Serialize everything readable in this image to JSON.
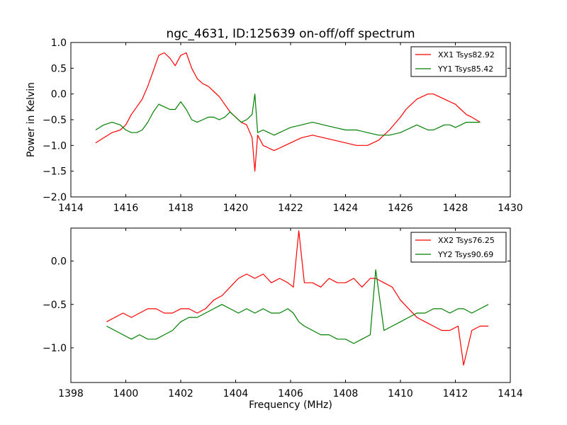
{
  "figure": {
    "title": "ngc_4631, ID:125639 on-off/off spectrum",
    "ylabel": "Power in Kelvin",
    "xlabel": "Frequency (MHz)"
  },
  "chart_data": [
    {
      "type": "line",
      "title": "ngc_4631, ID:125639 on-off/off spectrum",
      "xlabel": "",
      "ylabel": "Power in Kelvin",
      "xlim": [
        1414,
        1430
      ],
      "ylim": [
        -2.0,
        1.0
      ],
      "xticks": [
        1414,
        1416,
        1418,
        1420,
        1422,
        1424,
        1426,
        1428,
        1430
      ],
      "yticks": [
        -2.0,
        -1.5,
        -1.0,
        -0.5,
        0.0,
        0.5,
        1.0
      ],
      "xtick_labels": [
        "1414",
        "1416",
        "1418",
        "1420",
        "1422",
        "1424",
        "1426",
        "1428",
        "1430"
      ],
      "ytick_labels": [
        "−2.0",
        "−1.5",
        "−1.0",
        "−0.5",
        "0.0",
        "0.5",
        "1.0"
      ],
      "grid": false,
      "legend_position": "top-right",
      "series": [
        {
          "name": "XX1 Tsys82.92",
          "color": "#ff0000",
          "x": [
            1414.9,
            1415.2,
            1415.5,
            1415.8,
            1416.0,
            1416.2,
            1416.4,
            1416.6,
            1416.8,
            1417.0,
            1417.2,
            1417.4,
            1417.6,
            1417.8,
            1418.0,
            1418.2,
            1418.4,
            1418.6,
            1418.8,
            1419.0,
            1419.2,
            1419.4,
            1419.6,
            1419.8,
            1420.0,
            1420.2,
            1420.4,
            1420.6,
            1420.7,
            1420.8,
            1421.0,
            1421.2,
            1421.4,
            1421.6,
            1421.8,
            1422.0,
            1422.4,
            1422.8,
            1423.2,
            1423.6,
            1424.0,
            1424.4,
            1424.8,
            1425.2,
            1425.6,
            1426.0,
            1426.2,
            1426.4,
            1426.6,
            1426.8,
            1427.0,
            1427.2,
            1427.4,
            1427.6,
            1427.8,
            1428.0,
            1428.2,
            1428.4,
            1428.6,
            1428.9
          ],
          "y": [
            -0.95,
            -0.85,
            -0.75,
            -0.7,
            -0.6,
            -0.4,
            -0.25,
            -0.1,
            0.15,
            0.45,
            0.75,
            0.8,
            0.7,
            0.55,
            0.75,
            0.8,
            0.5,
            0.3,
            0.2,
            0.15,
            0.05,
            -0.05,
            -0.2,
            -0.35,
            -0.45,
            -0.55,
            -0.6,
            -0.85,
            -1.5,
            -0.8,
            -1.0,
            -1.05,
            -1.1,
            -1.05,
            -1.0,
            -0.95,
            -0.85,
            -0.8,
            -0.85,
            -0.9,
            -0.95,
            -1.0,
            -1.0,
            -0.9,
            -0.7,
            -0.45,
            -0.3,
            -0.2,
            -0.1,
            -0.05,
            0.0,
            0.0,
            -0.05,
            -0.1,
            -0.15,
            -0.2,
            -0.3,
            -0.4,
            -0.45,
            -0.55
          ]
        },
        {
          "name": "YY1 Tsys85.42",
          "color": "#008000",
          "x": [
            1414.9,
            1415.2,
            1415.5,
            1415.8,
            1416.0,
            1416.2,
            1416.4,
            1416.6,
            1416.8,
            1417.0,
            1417.2,
            1417.4,
            1417.6,
            1417.8,
            1418.0,
            1418.2,
            1418.4,
            1418.6,
            1418.8,
            1419.0,
            1419.2,
            1419.4,
            1419.6,
            1419.8,
            1420.0,
            1420.2,
            1420.4,
            1420.6,
            1420.7,
            1420.8,
            1421.0,
            1421.2,
            1421.4,
            1421.6,
            1421.8,
            1422.0,
            1422.4,
            1422.8,
            1423.2,
            1423.6,
            1424.0,
            1424.4,
            1424.8,
            1425.2,
            1425.6,
            1426.0,
            1426.2,
            1426.4,
            1426.6,
            1426.8,
            1427.0,
            1427.2,
            1427.4,
            1427.6,
            1427.8,
            1428.0,
            1428.2,
            1428.4,
            1428.6,
            1428.9
          ],
          "y": [
            -0.7,
            -0.6,
            -0.55,
            -0.6,
            -0.7,
            -0.75,
            -0.75,
            -0.7,
            -0.55,
            -0.35,
            -0.2,
            -0.25,
            -0.3,
            -0.3,
            -0.15,
            -0.3,
            -0.5,
            -0.55,
            -0.5,
            -0.45,
            -0.45,
            -0.5,
            -0.45,
            -0.35,
            -0.45,
            -0.55,
            -0.5,
            -0.4,
            0.0,
            -0.75,
            -0.7,
            -0.75,
            -0.8,
            -0.75,
            -0.7,
            -0.65,
            -0.6,
            -0.55,
            -0.6,
            -0.65,
            -0.7,
            -0.7,
            -0.75,
            -0.8,
            -0.8,
            -0.75,
            -0.7,
            -0.65,
            -0.6,
            -0.65,
            -0.7,
            -0.7,
            -0.65,
            -0.6,
            -0.6,
            -0.65,
            -0.6,
            -0.55,
            -0.55,
            -0.55
          ]
        }
      ]
    },
    {
      "type": "line",
      "title": "",
      "xlabel": "Frequency (MHz)",
      "ylabel": "",
      "xlim": [
        1398,
        1414
      ],
      "ylim": [
        -1.4,
        0.38
      ],
      "xticks": [
        1398,
        1400,
        1402,
        1404,
        1406,
        1408,
        1410,
        1412,
        1414
      ],
      "yticks": [
        -1.0,
        -0.5,
        0.0
      ],
      "xtick_labels": [
        "1398",
        "1400",
        "1402",
        "1404",
        "1406",
        "1408",
        "1410",
        "1412",
        "1414"
      ],
      "ytick_labels": [
        "−1.0",
        "−0.5",
        "0.0"
      ],
      "grid": false,
      "legend_position": "top-right",
      "series": [
        {
          "name": "XX2 Tsys76.25",
          "color": "#ff0000",
          "x": [
            1399.3,
            1399.6,
            1399.9,
            1400.2,
            1400.5,
            1400.8,
            1401.1,
            1401.4,
            1401.7,
            1402.0,
            1402.3,
            1402.6,
            1402.9,
            1403.2,
            1403.5,
            1403.8,
            1404.1,
            1404.4,
            1404.7,
            1405.0,
            1405.3,
            1405.6,
            1405.9,
            1406.1,
            1406.3,
            1406.5,
            1406.8,
            1407.1,
            1407.4,
            1407.7,
            1408.0,
            1408.3,
            1408.6,
            1408.9,
            1409.1,
            1409.4,
            1409.7,
            1410.0,
            1410.3,
            1410.6,
            1410.9,
            1411.2,
            1411.5,
            1411.8,
            1412.1,
            1412.3,
            1412.6,
            1412.9,
            1413.2
          ],
          "y": [
            -0.7,
            -0.65,
            -0.6,
            -0.65,
            -0.6,
            -0.55,
            -0.55,
            -0.6,
            -0.6,
            -0.55,
            -0.55,
            -0.6,
            -0.55,
            -0.45,
            -0.4,
            -0.3,
            -0.2,
            -0.15,
            -0.2,
            -0.15,
            -0.25,
            -0.2,
            -0.25,
            -0.3,
            0.35,
            -0.25,
            -0.25,
            -0.3,
            -0.2,
            -0.25,
            -0.25,
            -0.2,
            -0.3,
            -0.2,
            -0.2,
            -0.25,
            -0.3,
            -0.45,
            -0.55,
            -0.65,
            -0.7,
            -0.75,
            -0.8,
            -0.8,
            -0.75,
            -1.2,
            -0.8,
            -0.75,
            -0.75
          ]
        },
        {
          "name": "YY2 Tsys90.69",
          "color": "#008000",
          "x": [
            1399.3,
            1399.6,
            1399.9,
            1400.2,
            1400.5,
            1400.8,
            1401.1,
            1401.4,
            1401.7,
            1402.0,
            1402.3,
            1402.6,
            1402.9,
            1403.2,
            1403.5,
            1403.8,
            1404.1,
            1404.4,
            1404.7,
            1405.0,
            1405.3,
            1405.6,
            1405.9,
            1406.1,
            1406.3,
            1406.5,
            1406.8,
            1407.1,
            1407.4,
            1407.7,
            1408.0,
            1408.3,
            1408.6,
            1408.9,
            1409.1,
            1409.4,
            1409.7,
            1410.0,
            1410.3,
            1410.6,
            1410.9,
            1411.2,
            1411.5,
            1411.8,
            1412.1,
            1412.3,
            1412.6,
            1412.9,
            1413.2
          ],
          "y": [
            -0.75,
            -0.8,
            -0.85,
            -0.9,
            -0.85,
            -0.9,
            -0.9,
            -0.85,
            -0.8,
            -0.7,
            -0.65,
            -0.65,
            -0.6,
            -0.55,
            -0.5,
            -0.55,
            -0.6,
            -0.55,
            -0.6,
            -0.55,
            -0.6,
            -0.6,
            -0.55,
            -0.6,
            -0.7,
            -0.75,
            -0.8,
            -0.85,
            -0.85,
            -0.9,
            -0.9,
            -0.95,
            -0.9,
            -0.85,
            -0.1,
            -0.8,
            -0.75,
            -0.7,
            -0.65,
            -0.6,
            -0.6,
            -0.55,
            -0.55,
            -0.6,
            -0.55,
            -0.55,
            -0.6,
            -0.55,
            -0.5
          ]
        }
      ]
    }
  ]
}
